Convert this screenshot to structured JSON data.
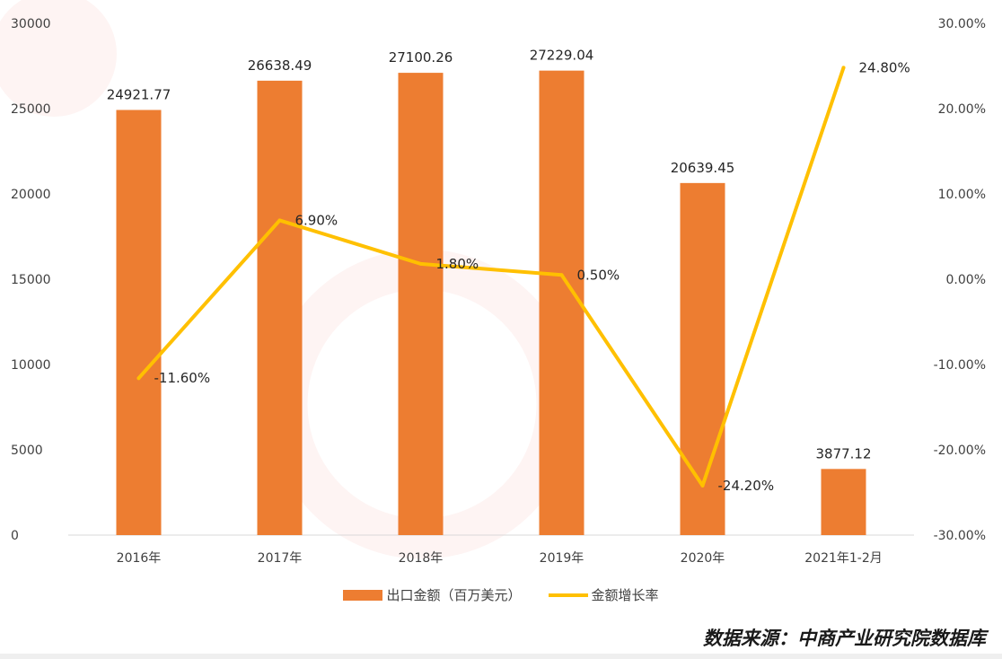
{
  "chart_data": {
    "type": "bar",
    "categories": [
      "2016年",
      "2017年",
      "2018年",
      "2019年",
      "2020年",
      "2021年1-2月"
    ],
    "series": [
      {
        "name": "出口金额（百万美元）",
        "type": "bar",
        "axis": "left",
        "values": [
          24921.77,
          26638.49,
          27100.26,
          27229.04,
          20639.45,
          3877.12
        ],
        "labels": [
          "24921.77",
          "26638.49",
          "27100.26",
          "27229.04",
          "20639.45",
          "3877.12"
        ]
      },
      {
        "name": "金额增长率",
        "type": "line",
        "axis": "right",
        "values": [
          -11.6,
          6.9,
          1.8,
          0.5,
          -24.2,
          24.8
        ],
        "labels": [
          "-11.60%",
          "6.90%",
          "1.80%",
          "0.50%",
          "-24.20%",
          "24.80%"
        ]
      }
    ],
    "left_axis": {
      "ylim": [
        0,
        30000
      ],
      "ticks": [
        "0",
        "5000",
        "10000",
        "15000",
        "20000",
        "25000",
        "30000"
      ]
    },
    "right_axis": {
      "ylim": [
        -30,
        30
      ],
      "ticks": [
        "-30.00%",
        "-20.00%",
        "-10.00%",
        "0.00%",
        "10.00%",
        "20.00%",
        "30.00%"
      ]
    },
    "legend_position": "bottom",
    "grid": false
  },
  "colors": {
    "bar": "#ED7D31",
    "line": "#FFC000"
  },
  "source_text": "数据来源：中商产业研究院数据库"
}
